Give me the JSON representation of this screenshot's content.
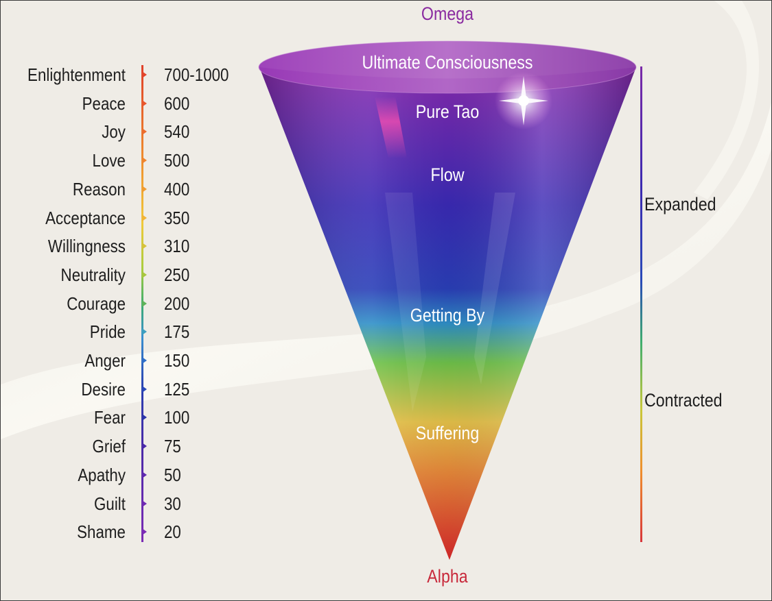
{
  "apex_label": "Omega",
  "base_label": "Alpha",
  "scale": {
    "levels": [
      {
        "label": "Enlightenment",
        "value": "700-1000",
        "color": "#e2452c"
      },
      {
        "label": "Peace",
        "value": "600",
        "color": "#e8572d"
      },
      {
        "label": "Joy",
        "value": "540",
        "color": "#ec6d2e"
      },
      {
        "label": "Love",
        "value": "500",
        "color": "#ef852f"
      },
      {
        "label": "Reason",
        "value": "400",
        "color": "#f09c33"
      },
      {
        "label": "Acceptance",
        "value": "350",
        "color": "#f1b437"
      },
      {
        "label": "Willingness",
        "value": "310",
        "color": "#d6c23b"
      },
      {
        "label": "Neutrality",
        "value": "250",
        "color": "#a8c63e"
      },
      {
        "label": "Courage",
        "value": "200",
        "color": "#5fb35a"
      },
      {
        "label": "Pride",
        "value": "175",
        "color": "#3d9fc0"
      },
      {
        "label": "Anger",
        "value": "150",
        "color": "#2f6fc8"
      },
      {
        "label": "Desire",
        "value": "125",
        "color": "#2a4ab8"
      },
      {
        "label": "Fear",
        "value": "100",
        "color": "#2b35a8"
      },
      {
        "label": "Grief",
        "value": "75",
        "color": "#4a2aa8"
      },
      {
        "label": "Apathy",
        "value": "50",
        "color": "#5f2aae"
      },
      {
        "label": "Guilt",
        "value": "30",
        "color": "#6f2bb2"
      },
      {
        "label": "Shame",
        "value": "20",
        "color": "#7b2bb5"
      }
    ]
  },
  "cone": {
    "zones": [
      {
        "label": "Ultimate Consciousness"
      },
      {
        "label": "Pure Tao"
      },
      {
        "label": "Flow"
      },
      {
        "label": "Getting By"
      },
      {
        "label": "Suffering"
      }
    ],
    "colors": {
      "top": "#8a2ab0",
      "upper": "#3a2ab5",
      "middle": "#2a3fb8",
      "green": "#6fc24a",
      "yellow": "#e6c24a",
      "orange": "#e88a3a",
      "bottom": "#d8282a"
    }
  },
  "range": {
    "upper_label": "Expanded",
    "lower_label": "Contracted"
  }
}
